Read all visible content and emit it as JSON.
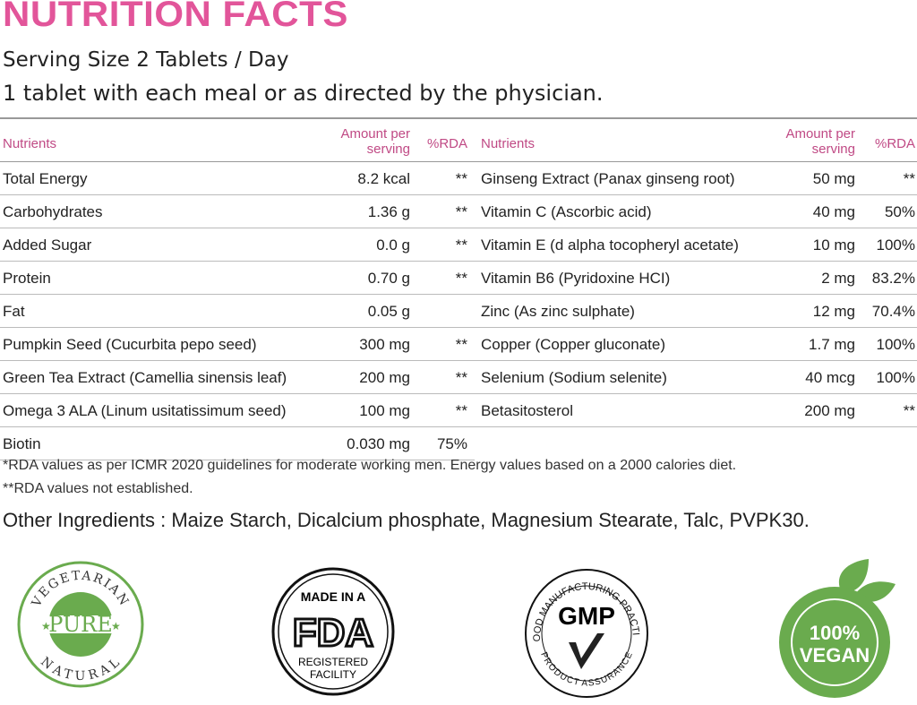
{
  "title": "NUTRITION FACTS",
  "serving": "Serving Size 2 Tablets / Day",
  "direction": "1 tablet with each meal or as directed by the physician.",
  "headers": {
    "nutrients": "Nutrients",
    "amount": "Amount per serving",
    "rda": "%RDA"
  },
  "left": [
    {
      "n": "Total Energy",
      "a": "8.2 kcal",
      "r": "**"
    },
    {
      "n": "Carbohydrates",
      "a": "1.36 g",
      "r": "**"
    },
    {
      "n": "Added Sugar",
      "a": "0.0 g",
      "r": "**"
    },
    {
      "n": "Protein",
      "a": "0.70 g",
      "r": "**"
    },
    {
      "n": "Fat",
      "a": "0.05 g",
      "r": ""
    },
    {
      "n": "Pumpkin Seed (Cucurbita pepo seed)",
      "a": "300 mg",
      "r": "**"
    },
    {
      "n": "Green Tea Extract (Camellia sinensis leaf)",
      "a": "200 mg",
      "r": "**"
    },
    {
      "n": "Omega 3 ALA (Linum usitatissimum seed)",
      "a": "100 mg",
      "r": "**"
    },
    {
      "n": "Biotin",
      "a": "0.030 mg",
      "r": "75%"
    }
  ],
  "right": [
    {
      "n": "Ginseng Extract (Panax ginseng root)",
      "a": "50 mg",
      "r": "**"
    },
    {
      "n": "Vitamin C (Ascorbic acid)",
      "a": "40 mg",
      "r": "50%"
    },
    {
      "n": "Vitamin E (d alpha tocopheryl acetate)",
      "a": "10 mg",
      "r": "100%"
    },
    {
      "n": "Vitamin B6 (Pyridoxine HCI)",
      "a": "2 mg",
      "r": "83.2%"
    },
    {
      "n": "Zinc (As zinc sulphate)",
      "a": "12 mg",
      "r": "70.4%"
    },
    {
      "n": "Copper (Copper gluconate)",
      "a": "1.7 mg",
      "r": "100%"
    },
    {
      "n": "Selenium (Sodium selenite)",
      "a": "40 mcg",
      "r": "100%"
    },
    {
      "n": "Betasitosterol",
      "a": "200 mg",
      "r": "**"
    },
    {
      "n": "",
      "a": "",
      "r": ""
    }
  ],
  "footnote1": "*RDA values as per ICMR 2020 guidelines for moderate working men. Energy values based on a 2000 calories diet.",
  "footnote2": "**RDA values not established.",
  "other": "Other Ingredients : Maize Starch, Dicalcium phosphate, Magnesium Stearate, Talc, PVPK30.",
  "badges": {
    "veg": {
      "top": "VEGETARIAN",
      "mid": "PURE",
      "bottom": "NATURAL"
    },
    "fda": {
      "top": "MADE IN A",
      "mid": "FDA",
      "bottom1": "REGISTERED",
      "bottom2": "FACILITY"
    },
    "gmp": {
      "ring": "GOOD MANUFACTURING PRACTICE",
      "mid": "GMP",
      "bottom": "PRODUCT ASSURANCE"
    },
    "vegan": {
      "l1": "100%",
      "l2": "VEGAN"
    }
  },
  "colors": {
    "title": "#e2559a",
    "header": "#c04a85",
    "green": "#6aab4e"
  }
}
